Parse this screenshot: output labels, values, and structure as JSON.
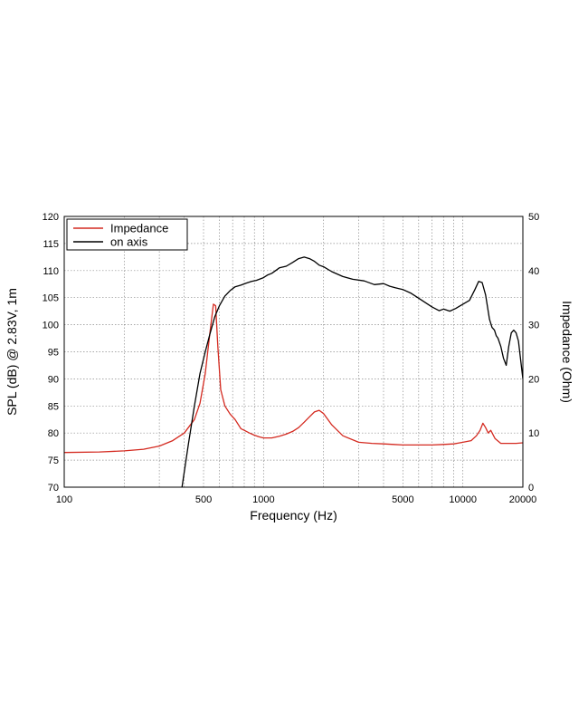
{
  "chart_data": {
    "type": "line",
    "xlabel": "Frequency (Hz)",
    "ylabel": "SPL (dB) @ 2.83V, 1m",
    "y2label": "Impedance (Ohm)",
    "xscale": "log",
    "xlim": [
      100,
      20000
    ],
    "ylim": [
      70,
      120
    ],
    "y2lim": [
      0,
      50
    ],
    "grid": true,
    "legend_position": "top-left",
    "x_ticks": [
      "100",
      "500",
      "1000",
      "5000",
      "10000",
      "20000"
    ],
    "y_ticks": [
      "70",
      "75",
      "80",
      "85",
      "90",
      "95",
      "100",
      "105",
      "110",
      "115",
      "120"
    ],
    "y2_ticks": [
      "0",
      "10",
      "20",
      "30",
      "40",
      "50"
    ],
    "series": [
      {
        "name": "Impedance",
        "axis": "right",
        "color": "#d42a20",
        "x": [
          100,
          150,
          200,
          250,
          300,
          350,
          400,
          450,
          480,
          510,
          540,
          560,
          575,
          590,
          610,
          640,
          680,
          720,
          770,
          800,
          850,
          900,
          950,
          1000,
          1100,
          1200,
          1300,
          1400,
          1500,
          1600,
          1700,
          1800,
          1900,
          2000,
          2200,
          2500,
          3000,
          3500,
          4000,
          4500,
          5000,
          6000,
          7000,
          8000,
          9000,
          10000,
          11000,
          11700,
          12200,
          12600,
          13000,
          13400,
          13800,
          14500,
          15500,
          17000,
          18500,
          20000
        ],
        "y": [
          6.4,
          6.5,
          6.7,
          7.0,
          7.6,
          8.6,
          10.0,
          12.5,
          15.5,
          21.0,
          29.0,
          33.8,
          33.5,
          26.0,
          18.0,
          15.0,
          13.5,
          12.5,
          10.8,
          10.5,
          10.0,
          9.6,
          9.3,
          9.1,
          9.1,
          9.4,
          9.8,
          10.3,
          11.0,
          12.0,
          13.0,
          13.9,
          14.2,
          13.6,
          11.5,
          9.5,
          8.3,
          8.1,
          8.0,
          7.9,
          7.8,
          7.8,
          7.8,
          7.9,
          8.0,
          8.3,
          8.6,
          9.5,
          10.5,
          11.8,
          11.0,
          10.0,
          10.5,
          9.0,
          8.1,
          8.1,
          8.1,
          8.2
        ]
      },
      {
        "name": "on axis",
        "axis": "left",
        "color": "#000000",
        "x": [
          390,
          420,
          450,
          480,
          510,
          540,
          570,
          600,
          640,
          680,
          720,
          770,
          820,
          870,
          920,
          1000,
          1050,
          1100,
          1150,
          1200,
          1300,
          1400,
          1500,
          1600,
          1700,
          1800,
          1900,
          2000,
          2200,
          2500,
          2800,
          3200,
          3600,
          4000,
          4300,
          4600,
          5000,
          5500,
          6000,
          7000,
          7600,
          8000,
          8600,
          9200,
          10000,
          10800,
          11500,
          12000,
          12500,
          13000,
          13600,
          14000,
          14400,
          14700,
          15000,
          15500,
          16000,
          16500,
          17000,
          17500,
          18000,
          18500,
          19000,
          20000
        ],
        "y": [
          70,
          78,
          85,
          91,
          95,
          98.5,
          101.5,
          103.5,
          105.3,
          106.3,
          107,
          107.3,
          107.7,
          108,
          108.2,
          108.7,
          109.2,
          109.5,
          110,
          110.5,
          110.8,
          111.5,
          112.2,
          112.5,
          112.2,
          111.7,
          111,
          110.7,
          109.8,
          108.9,
          108.4,
          108.1,
          107.4,
          107.6,
          107.1,
          106.8,
          106.5,
          105.8,
          104.9,
          103.3,
          102.6,
          102.9,
          102.5,
          103,
          103.8,
          104.5,
          106.5,
          108,
          107.8,
          105.5,
          101,
          99.5,
          99,
          98,
          97.5,
          96,
          93.8,
          92.5,
          96,
          98.5,
          99,
          98.5,
          97,
          90
        ]
      }
    ]
  }
}
